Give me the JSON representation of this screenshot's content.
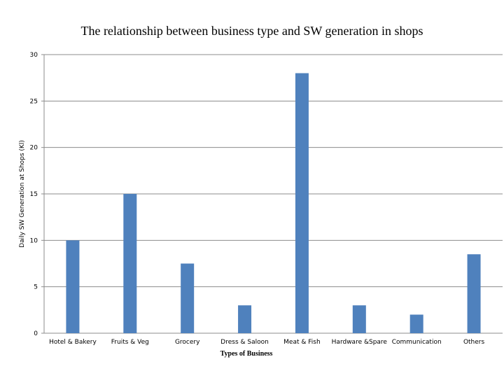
{
  "chart_data": {
    "type": "bar",
    "title": "The relationship between business type and SW generation in shops",
    "xlabel": "Types of Business",
    "ylabel": "Daily SW Generation at Shops (Kl)",
    "categories": [
      "Hotel & Bakery",
      "Fruits & Veg",
      "Grocery",
      "Dress & Saloon",
      "Meat & Fish",
      "Hardware &Spare",
      "Communication",
      "Others"
    ],
    "values": [
      10,
      15,
      7.5,
      3,
      28,
      3,
      2,
      8.5
    ],
    "ylim": [
      0,
      30
    ],
    "yticks": [
      "0",
      "5",
      "10",
      "15",
      "20",
      "25",
      "30"
    ],
    "grid": true,
    "legend": "none",
    "bar_color": "#4f81bd",
    "grid_color": "#8c8c8c"
  }
}
